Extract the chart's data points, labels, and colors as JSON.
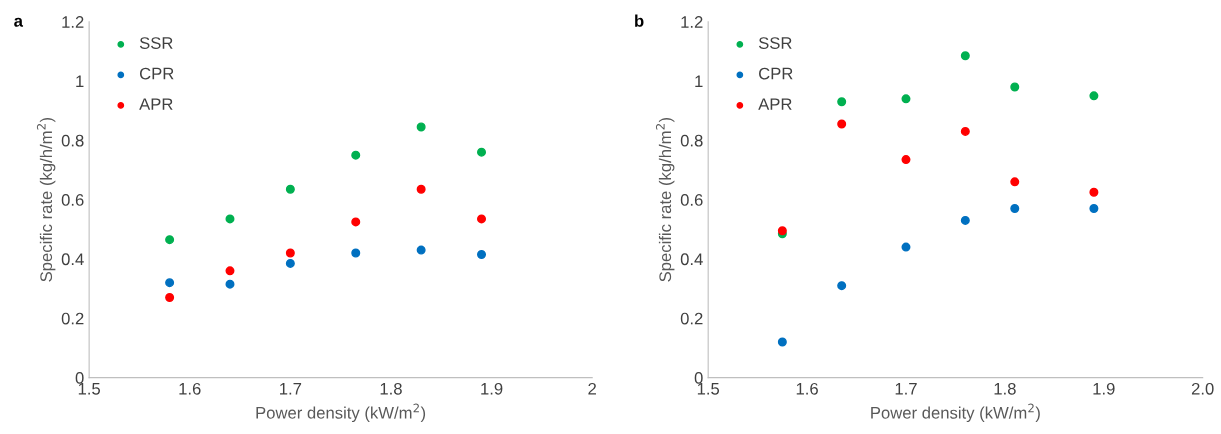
{
  "chart_data": [
    {
      "type": "scatter",
      "title": "a",
      "xlabel": "Power density (kW/m$^{2}$)",
      "ylabel": "Specific rate (kg/h/m$^{2}$)",
      "xlim": [
        1.5,
        2
      ],
      "xticks": [
        1.5,
        1.6,
        1.7,
        1.8,
        1.9,
        2
      ],
      "ylim": [
        0,
        1.2
      ],
      "yticks": [
        0,
        0.2,
        0.4,
        0.6,
        0.8,
        1,
        1.2
      ],
      "x": [
        1.58,
        1.64,
        1.7,
        1.765,
        1.83,
        1.89
      ],
      "legend": "top left",
      "grid": false,
      "marker": "circle",
      "series": [
        {
          "name": "SSR",
          "color": "#00b050",
          "values": [
            0.465,
            0.535,
            0.635,
            0.75,
            0.845,
            0.76
          ]
        },
        {
          "name": "CPR",
          "color": "#0070c0",
          "values": [
            0.32,
            0.315,
            0.385,
            0.42,
            0.43,
            0.415
          ]
        },
        {
          "name": "APR",
          "color": "#ff0000",
          "values": [
            0.27,
            0.36,
            0.42,
            0.525,
            0.635,
            0.535
          ]
        }
      ]
    },
    {
      "type": "scatter",
      "title": "b",
      "xlabel": "Power density (kW/m$^{2}$)",
      "ylabel": "Specific rate (kg/h/m$^{2}$)",
      "xlim": [
        1.5,
        2
      ],
      "xticks": [
        1.5,
        1.6,
        1.7,
        1.8,
        1.9,
        {
          "value": 2,
          "label": "2.0"
        }
      ],
      "ylim": [
        0,
        1.2
      ],
      "yticks": [
        0,
        0.2,
        0.4,
        0.6,
        0.8,
        1,
        1.2
      ],
      "x": [
        1.575,
        1.635,
        1.7,
        1.76,
        1.81,
        1.89
      ],
      "legend": "top left",
      "grid": false,
      "marker": "circle",
      "series": [
        {
          "name": "SSR",
          "color": "#00b050",
          "values": [
            0.485,
            0.93,
            0.94,
            1.085,
            0.98,
            0.95
          ]
        },
        {
          "name": "CPR",
          "color": "#0070c0",
          "values": [
            0.12,
            0.31,
            0.44,
            0.53,
            0.57,
            0.57
          ]
        },
        {
          "name": "APR",
          "color": "#ff0000",
          "values": [
            0.495,
            0.855,
            0.735,
            0.83,
            0.66,
            0.625
          ]
        }
      ]
    }
  ]
}
